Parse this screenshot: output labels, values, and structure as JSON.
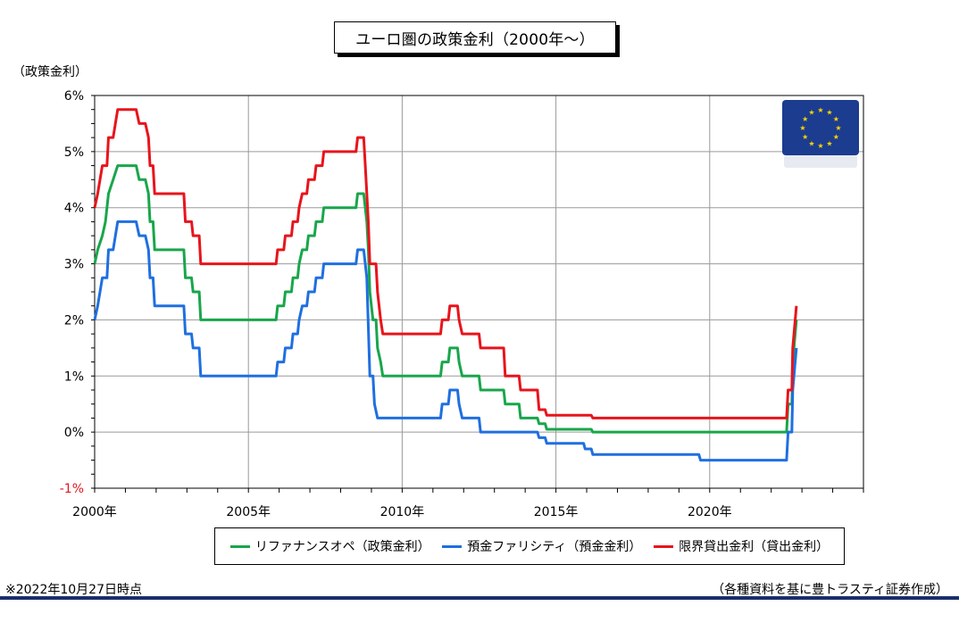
{
  "title": "ユーロ圏の政策金利（2000年～）",
  "y_axis_label": "（政策金利）",
  "footnote": "※2022年10月27日時点",
  "source": "（各種資料を基に豊トラスティ証券作成）",
  "flag_icon": "eu-flag-icon",
  "chart_data": {
    "type": "line",
    "x_unit": "year",
    "xlim": [
      2000,
      2025
    ],
    "ylim": [
      -1,
      6
    ],
    "x_ticks": [
      {
        "value": 2000,
        "label": "2000年"
      },
      {
        "value": 2005,
        "label": "2005年"
      },
      {
        "value": 2010,
        "label": "2010年"
      },
      {
        "value": 2015,
        "label": "2015年"
      },
      {
        "value": 2020,
        "label": "2020年"
      }
    ],
    "y_ticks": [
      {
        "value": 6,
        "label": "6%"
      },
      {
        "value": 5,
        "label": "5%"
      },
      {
        "value": 4,
        "label": "4%"
      },
      {
        "value": 3,
        "label": "3%"
      },
      {
        "value": 2,
        "label": "2%"
      },
      {
        "value": 1,
        "label": "1%"
      },
      {
        "value": 0,
        "label": "0%"
      },
      {
        "value": -1,
        "label": "-1%"
      }
    ],
    "grid": true,
    "legend_position": "bottom",
    "series": [
      {
        "name": "リファナンスオペ（政策金利）",
        "color": "#19a64b",
        "points": [
          [
            2000.0,
            3.0
          ],
          [
            2000.1,
            3.25
          ],
          [
            2000.25,
            3.5
          ],
          [
            2000.35,
            3.75
          ],
          [
            2000.45,
            4.25
          ],
          [
            2000.6,
            4.5
          ],
          [
            2000.75,
            4.75
          ],
          [
            2001.35,
            4.75
          ],
          [
            2001.45,
            4.5
          ],
          [
            2001.65,
            4.5
          ],
          [
            2001.75,
            4.25
          ],
          [
            2001.8,
            3.75
          ],
          [
            2001.9,
            3.75
          ],
          [
            2001.95,
            3.25
          ],
          [
            2002.9,
            3.25
          ],
          [
            2002.95,
            2.75
          ],
          [
            2003.15,
            2.75
          ],
          [
            2003.2,
            2.5
          ],
          [
            2003.4,
            2.5
          ],
          [
            2003.45,
            2.0
          ],
          [
            2005.9,
            2.0
          ],
          [
            2005.95,
            2.25
          ],
          [
            2006.15,
            2.25
          ],
          [
            2006.2,
            2.5
          ],
          [
            2006.4,
            2.5
          ],
          [
            2006.45,
            2.75
          ],
          [
            2006.6,
            2.75
          ],
          [
            2006.65,
            3.0
          ],
          [
            2006.75,
            3.25
          ],
          [
            2006.9,
            3.25
          ],
          [
            2006.95,
            3.5
          ],
          [
            2007.15,
            3.5
          ],
          [
            2007.2,
            3.75
          ],
          [
            2007.4,
            3.75
          ],
          [
            2007.45,
            4.0
          ],
          [
            2008.5,
            4.0
          ],
          [
            2008.55,
            4.25
          ],
          [
            2008.75,
            4.25
          ],
          [
            2008.85,
            3.75
          ],
          [
            2008.9,
            3.25
          ],
          [
            2008.95,
            2.5
          ],
          [
            2009.05,
            2.0
          ],
          [
            2009.15,
            2.0
          ],
          [
            2009.2,
            1.5
          ],
          [
            2009.3,
            1.25
          ],
          [
            2009.37,
            1.0
          ],
          [
            2011.25,
            1.0
          ],
          [
            2011.3,
            1.25
          ],
          [
            2011.5,
            1.25
          ],
          [
            2011.55,
            1.5
          ],
          [
            2011.8,
            1.5
          ],
          [
            2011.85,
            1.25
          ],
          [
            2011.95,
            1.0
          ],
          [
            2012.5,
            1.0
          ],
          [
            2012.55,
            0.75
          ],
          [
            2013.3,
            0.75
          ],
          [
            2013.35,
            0.5
          ],
          [
            2013.8,
            0.5
          ],
          [
            2013.85,
            0.25
          ],
          [
            2014.4,
            0.25
          ],
          [
            2014.45,
            0.15
          ],
          [
            2014.65,
            0.15
          ],
          [
            2014.7,
            0.05
          ],
          [
            2016.15,
            0.05
          ],
          [
            2016.2,
            0.0
          ],
          [
            2022.5,
            0.0
          ],
          [
            2022.55,
            0.5
          ],
          [
            2022.67,
            0.5
          ],
          [
            2022.7,
            1.25
          ],
          [
            2022.82,
            2.0
          ]
        ]
      },
      {
        "name": "預金ファリシティ（預金金利）",
        "color": "#1f6fe0",
        "points": [
          [
            2000.0,
            2.0
          ],
          [
            2000.1,
            2.25
          ],
          [
            2000.25,
            2.75
          ],
          [
            2000.4,
            2.75
          ],
          [
            2000.45,
            3.25
          ],
          [
            2000.6,
            3.25
          ],
          [
            2000.75,
            3.75
          ],
          [
            2001.35,
            3.75
          ],
          [
            2001.45,
            3.5
          ],
          [
            2001.65,
            3.5
          ],
          [
            2001.75,
            3.25
          ],
          [
            2001.8,
            2.75
          ],
          [
            2001.9,
            2.75
          ],
          [
            2001.95,
            2.25
          ],
          [
            2002.9,
            2.25
          ],
          [
            2002.95,
            1.75
          ],
          [
            2003.15,
            1.75
          ],
          [
            2003.2,
            1.5
          ],
          [
            2003.4,
            1.5
          ],
          [
            2003.45,
            1.0
          ],
          [
            2005.9,
            1.0
          ],
          [
            2005.95,
            1.25
          ],
          [
            2006.15,
            1.25
          ],
          [
            2006.2,
            1.5
          ],
          [
            2006.4,
            1.5
          ],
          [
            2006.45,
            1.75
          ],
          [
            2006.6,
            1.75
          ],
          [
            2006.65,
            2.0
          ],
          [
            2006.75,
            2.25
          ],
          [
            2006.9,
            2.25
          ],
          [
            2006.95,
            2.5
          ],
          [
            2007.15,
            2.5
          ],
          [
            2007.2,
            2.75
          ],
          [
            2007.4,
            2.75
          ],
          [
            2007.45,
            3.0
          ],
          [
            2008.5,
            3.0
          ],
          [
            2008.55,
            3.25
          ],
          [
            2008.75,
            3.25
          ],
          [
            2008.85,
            2.75
          ],
          [
            2008.95,
            1.0
          ],
          [
            2009.05,
            1.0
          ],
          [
            2009.1,
            0.5
          ],
          [
            2009.2,
            0.25
          ],
          [
            2011.25,
            0.25
          ],
          [
            2011.3,
            0.5
          ],
          [
            2011.5,
            0.5
          ],
          [
            2011.55,
            0.75
          ],
          [
            2011.8,
            0.75
          ],
          [
            2011.85,
            0.5
          ],
          [
            2011.95,
            0.25
          ],
          [
            2012.5,
            0.25
          ],
          [
            2012.55,
            0.0
          ],
          [
            2014.4,
            0.0
          ],
          [
            2014.45,
            -0.1
          ],
          [
            2014.65,
            -0.1
          ],
          [
            2014.7,
            -0.2
          ],
          [
            2015.9,
            -0.2
          ],
          [
            2015.95,
            -0.3
          ],
          [
            2016.15,
            -0.3
          ],
          [
            2016.2,
            -0.4
          ],
          [
            2019.65,
            -0.4
          ],
          [
            2019.7,
            -0.5
          ],
          [
            2022.5,
            -0.5
          ],
          [
            2022.55,
            0.0
          ],
          [
            2022.67,
            0.0
          ],
          [
            2022.7,
            0.75
          ],
          [
            2022.82,
            1.5
          ]
        ]
      },
      {
        "name": "限界貸出金利（貸出金利）",
        "color": "#e8141c",
        "points": [
          [
            2000.0,
            4.0
          ],
          [
            2000.1,
            4.25
          ],
          [
            2000.25,
            4.75
          ],
          [
            2000.4,
            4.75
          ],
          [
            2000.45,
            5.25
          ],
          [
            2000.6,
            5.25
          ],
          [
            2000.75,
            5.75
          ],
          [
            2001.35,
            5.75
          ],
          [
            2001.45,
            5.5
          ],
          [
            2001.65,
            5.5
          ],
          [
            2001.75,
            5.25
          ],
          [
            2001.8,
            4.75
          ],
          [
            2001.9,
            4.75
          ],
          [
            2001.95,
            4.25
          ],
          [
            2002.9,
            4.25
          ],
          [
            2002.95,
            3.75
          ],
          [
            2003.15,
            3.75
          ],
          [
            2003.2,
            3.5
          ],
          [
            2003.4,
            3.5
          ],
          [
            2003.45,
            3.0
          ],
          [
            2005.9,
            3.0
          ],
          [
            2005.95,
            3.25
          ],
          [
            2006.15,
            3.25
          ],
          [
            2006.2,
            3.5
          ],
          [
            2006.4,
            3.5
          ],
          [
            2006.45,
            3.75
          ],
          [
            2006.6,
            3.75
          ],
          [
            2006.65,
            4.0
          ],
          [
            2006.75,
            4.25
          ],
          [
            2006.9,
            4.25
          ],
          [
            2006.95,
            4.5
          ],
          [
            2007.15,
            4.5
          ],
          [
            2007.2,
            4.75
          ],
          [
            2007.4,
            4.75
          ],
          [
            2007.45,
            5.0
          ],
          [
            2008.5,
            5.0
          ],
          [
            2008.55,
            5.25
          ],
          [
            2008.75,
            5.25
          ],
          [
            2008.8,
            4.75
          ],
          [
            2008.9,
            3.75
          ],
          [
            2008.95,
            3.0
          ],
          [
            2009.15,
            3.0
          ],
          [
            2009.2,
            2.5
          ],
          [
            2009.3,
            2.0
          ],
          [
            2009.37,
            1.75
          ],
          [
            2011.25,
            1.75
          ],
          [
            2011.3,
            2.0
          ],
          [
            2011.5,
            2.0
          ],
          [
            2011.55,
            2.25
          ],
          [
            2011.8,
            2.25
          ],
          [
            2011.85,
            2.0
          ],
          [
            2011.95,
            1.75
          ],
          [
            2012.5,
            1.75
          ],
          [
            2012.55,
            1.5
          ],
          [
            2013.3,
            1.5
          ],
          [
            2013.35,
            1.0
          ],
          [
            2013.8,
            1.0
          ],
          [
            2013.85,
            0.75
          ],
          [
            2014.4,
            0.75
          ],
          [
            2014.45,
            0.4
          ],
          [
            2014.65,
            0.4
          ],
          [
            2014.7,
            0.3
          ],
          [
            2016.15,
            0.3
          ],
          [
            2016.2,
            0.25
          ],
          [
            2022.5,
            0.25
          ],
          [
            2022.55,
            0.75
          ],
          [
            2022.67,
            0.75
          ],
          [
            2022.7,
            1.5
          ],
          [
            2022.82,
            2.25
          ]
        ]
      }
    ]
  }
}
